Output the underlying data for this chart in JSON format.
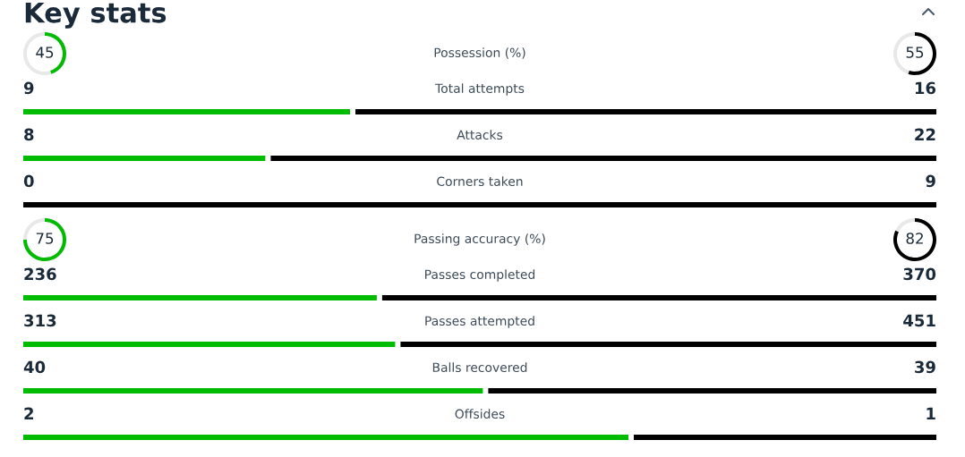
{
  "chart_data": {
    "type": "other",
    "title": "Key stats",
    "categories": [
      "Possession (%)",
      "Total attempts",
      "Attacks",
      "Corners taken",
      "Passing accuracy (%)",
      "Passes completed",
      "Passes attempted",
      "Balls recovered",
      "Offsides"
    ],
    "series": [
      {
        "type": "donut",
        "color": "#00bb00",
        "values": [
          45,
          null,
          null,
          null,
          75,
          null,
          null,
          null,
          null
        ]
      },
      {
        "type": "donut",
        "color": "#000000",
        "values": [
          55,
          null,
          null,
          null,
          82,
          null,
          null,
          null,
          null
        ]
      },
      {
        "type": "bar",
        "color": "#00bb00",
        "values": [
          null,
          9,
          8,
          0,
          null,
          236,
          313,
          40,
          2
        ]
      },
      {
        "type": "bar",
        "color": "#000000",
        "values": [
          null,
          16,
          22,
          9,
          null,
          370,
          451,
          39,
          1
        ]
      }
    ],
    "data_labels": true
  }
}
